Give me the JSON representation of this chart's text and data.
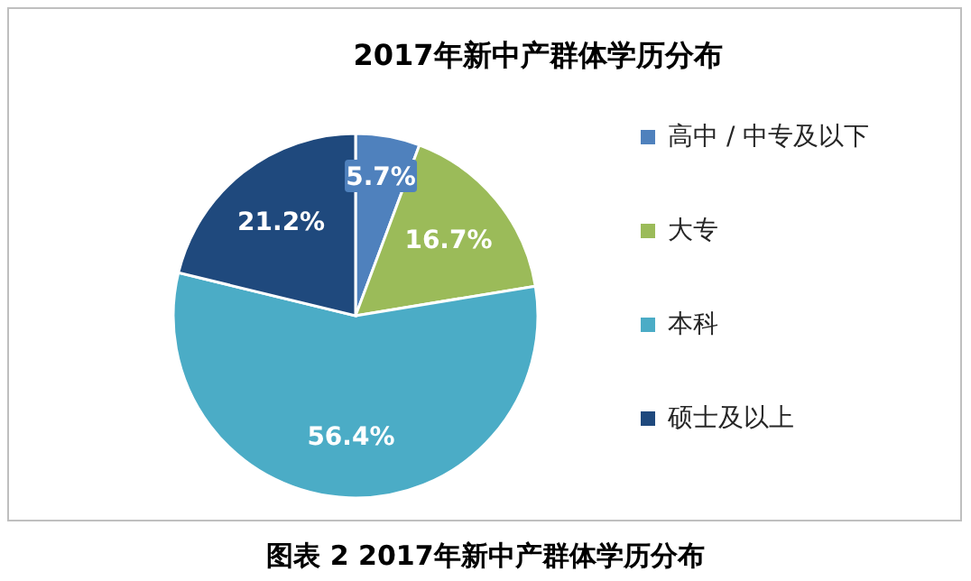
{
  "chart_data": {
    "type": "pie",
    "title": "2017年新中产群体学历分布",
    "categories": [
      "高中 / 中专及以下",
      "大专",
      "本科",
      "硕士及以上"
    ],
    "values": [
      5.7,
      16.7,
      56.4,
      21.2
    ],
    "value_labels": [
      "5.7%",
      "16.7%",
      "56.4%",
      "21.2%"
    ],
    "colors": [
      "#4f81bd",
      "#9bbb59",
      "#4bacc6",
      "#1f497d"
    ],
    "legend": "right",
    "annotations": [
      "图表 2 2017年新中产群体学历分布"
    ]
  }
}
